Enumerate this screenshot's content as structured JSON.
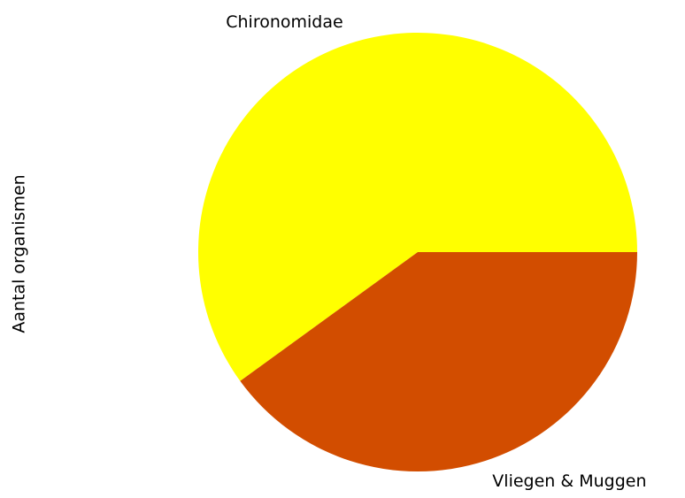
{
  "chart_data": {
    "type": "pie",
    "ylabel": "Aantal organismen",
    "categories": [
      "Chironomidae",
      "Vliegen & Muggen"
    ],
    "values": [
      60,
      40
    ],
    "colors": [
      "#ffff00",
      "#d24d00"
    ],
    "startangle": 0,
    "counterclock": true
  }
}
